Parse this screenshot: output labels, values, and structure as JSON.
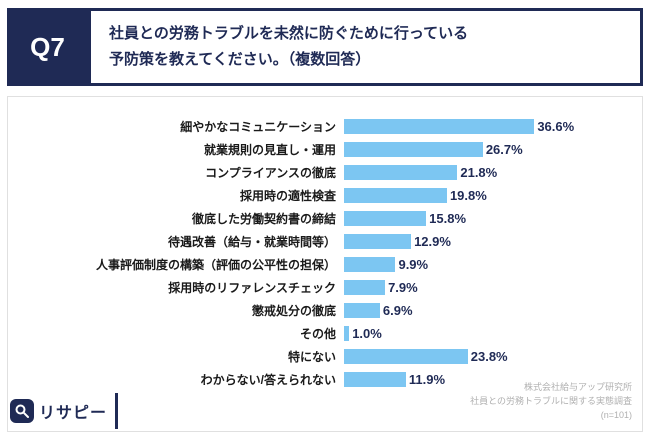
{
  "header": {
    "q_label": "Q7",
    "title_line1": "社員との労務トラブルを未然に防ぐために行っている",
    "title_line2": "予防策を教えてください。（複数回答）"
  },
  "chart_data": {
    "type": "bar",
    "orientation": "horizontal",
    "title": "社員との労務トラブルを未然に防ぐために行っている予防策（複数回答）",
    "categories": [
      "細やかなコミュニケーション",
      "就業規則の見直し・運用",
      "コンプライアンスの徹底",
      "採用時の適性検査",
      "徹底した労働契約書の締結",
      "待遇改善（給与・就業時間等）",
      "人事評価制度の構築（評価の公平性の担保）",
      "採用時のリファレンスチェック",
      "懲戒処分の徹底",
      "その他",
      "特にない",
      "わからない/答えられない"
    ],
    "values": [
      36.6,
      26.7,
      21.8,
      19.8,
      15.8,
      12.9,
      9.9,
      7.9,
      6.9,
      1.0,
      23.8,
      11.9
    ],
    "value_labels": [
      "36.6%",
      "26.7%",
      "21.8%",
      "19.8%",
      "15.8%",
      "12.9%",
      "9.9%",
      "7.9%",
      "6.9%",
      "1.0%",
      "23.8%",
      "11.9%"
    ],
    "unit": "%",
    "xlim": [
      0,
      40
    ],
    "grid": false,
    "legend": "none",
    "bar_color": "#7cc6f2",
    "accent_color": "#1f2a55"
  },
  "footer": {
    "logo_text": "リサピー",
    "source_line1": "株式会社給与アップ研究所",
    "source_line2": "社員との労務トラブルに関する実態調査",
    "source_line3": "(n=101)"
  }
}
